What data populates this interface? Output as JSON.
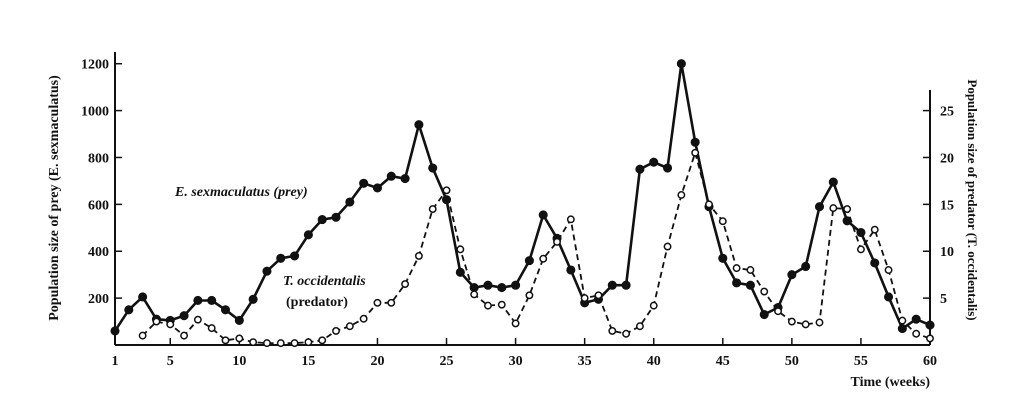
{
  "chart_data": {
    "type": "line",
    "title": "",
    "xlabel": "Time (weeks)",
    "ylabel_left": "Population size of prey (E. sexmaculatus)",
    "ylabel_right": "Population size of predator (T. occidentalis)",
    "xlim": [
      1,
      60
    ],
    "ylim_left": [
      0,
      1250
    ],
    "ylim_right": [
      0,
      31.25
    ],
    "x_ticks": [
      1,
      5,
      10,
      15,
      20,
      25,
      30,
      35,
      40,
      45,
      50,
      55,
      60
    ],
    "y_ticks_left": [
      200,
      400,
      600,
      800,
      1000,
      1200
    ],
    "y_ticks_right": [
      5,
      10,
      15,
      20,
      25
    ],
    "grid": false,
    "series": [
      {
        "name": "E. sexmaculatus (prey)",
        "axis": "left",
        "style": "solid",
        "marker": "filled-circle",
        "color": "#111111",
        "x": [
          1,
          2,
          3,
          4,
          5,
          6,
          7,
          8,
          9,
          10,
          11,
          12,
          13,
          14,
          15,
          16,
          17,
          18,
          19,
          20,
          21,
          22,
          23,
          24,
          25,
          26,
          27,
          28,
          29,
          30,
          31,
          32,
          33,
          34,
          35,
          36,
          37,
          38,
          39,
          40,
          41,
          42,
          43,
          44,
          45,
          46,
          47,
          48,
          49,
          50,
          51,
          52,
          53,
          54,
          55,
          56,
          57,
          58,
          59,
          60
        ],
        "y": [
          60,
          150,
          205,
          110,
          105,
          125,
          190,
          190,
          150,
          105,
          195,
          315,
          370,
          380,
          470,
          535,
          545,
          610,
          690,
          670,
          720,
          710,
          940,
          755,
          620,
          310,
          245,
          255,
          245,
          255,
          360,
          555,
          455,
          320,
          180,
          195,
          255,
          255,
          750,
          780,
          755,
          1200,
          865,
          590,
          370,
          265,
          255,
          130,
          160,
          300,
          335,
          590,
          695,
          530,
          480,
          350,
          205,
          70,
          110,
          85
        ]
      },
      {
        "name": "T. occidentalis (predator)",
        "axis": "right",
        "style": "dashed",
        "marker": "open-circle",
        "color": "#111111",
        "x": [
          3,
          4,
          5,
          6,
          7,
          8,
          9,
          10,
          11,
          12,
          13,
          14,
          15,
          16,
          17,
          18,
          19,
          20,
          21,
          22,
          23,
          24,
          25,
          26,
          27,
          28,
          29,
          30,
          31,
          32,
          33,
          34,
          35,
          36,
          37,
          38,
          39,
          40,
          41,
          42,
          43,
          44,
          45,
          46,
          47,
          48,
          49,
          50,
          51,
          52,
          53,
          54,
          55,
          56,
          57,
          58,
          59,
          60
        ],
        "y": [
          1.0,
          2.5,
          2.2,
          1.0,
          2.7,
          1.8,
          0.5,
          0.7,
          0.3,
          0.2,
          0.2,
          0.2,
          0.3,
          0.5,
          1.5,
          2.0,
          2.8,
          4.5,
          4.5,
          6.5,
          9.5,
          14.5,
          16.5,
          10.2,
          5.4,
          4.2,
          4.3,
          2.3,
          5.3,
          9.2,
          11.0,
          13.4,
          5.0,
          5.3,
          1.5,
          1.2,
          2.0,
          4.2,
          10.5,
          16.0,
          20.5,
          15.0,
          13.2,
          8.2,
          8.0,
          5.7,
          3.6,
          2.5,
          2.2,
          2.4,
          14.6,
          14.5,
          10.2,
          12.3,
          8.0,
          2.6,
          1.2,
          0.7
        ]
      }
    ],
    "annotations": [
      {
        "text": "E. sexmaculatus (prey)",
        "target_series": 0
      },
      {
        "text": "T. occidentalis",
        "target_series": 1
      },
      {
        "text": "(predator)",
        "target_series": 1
      }
    ]
  }
}
